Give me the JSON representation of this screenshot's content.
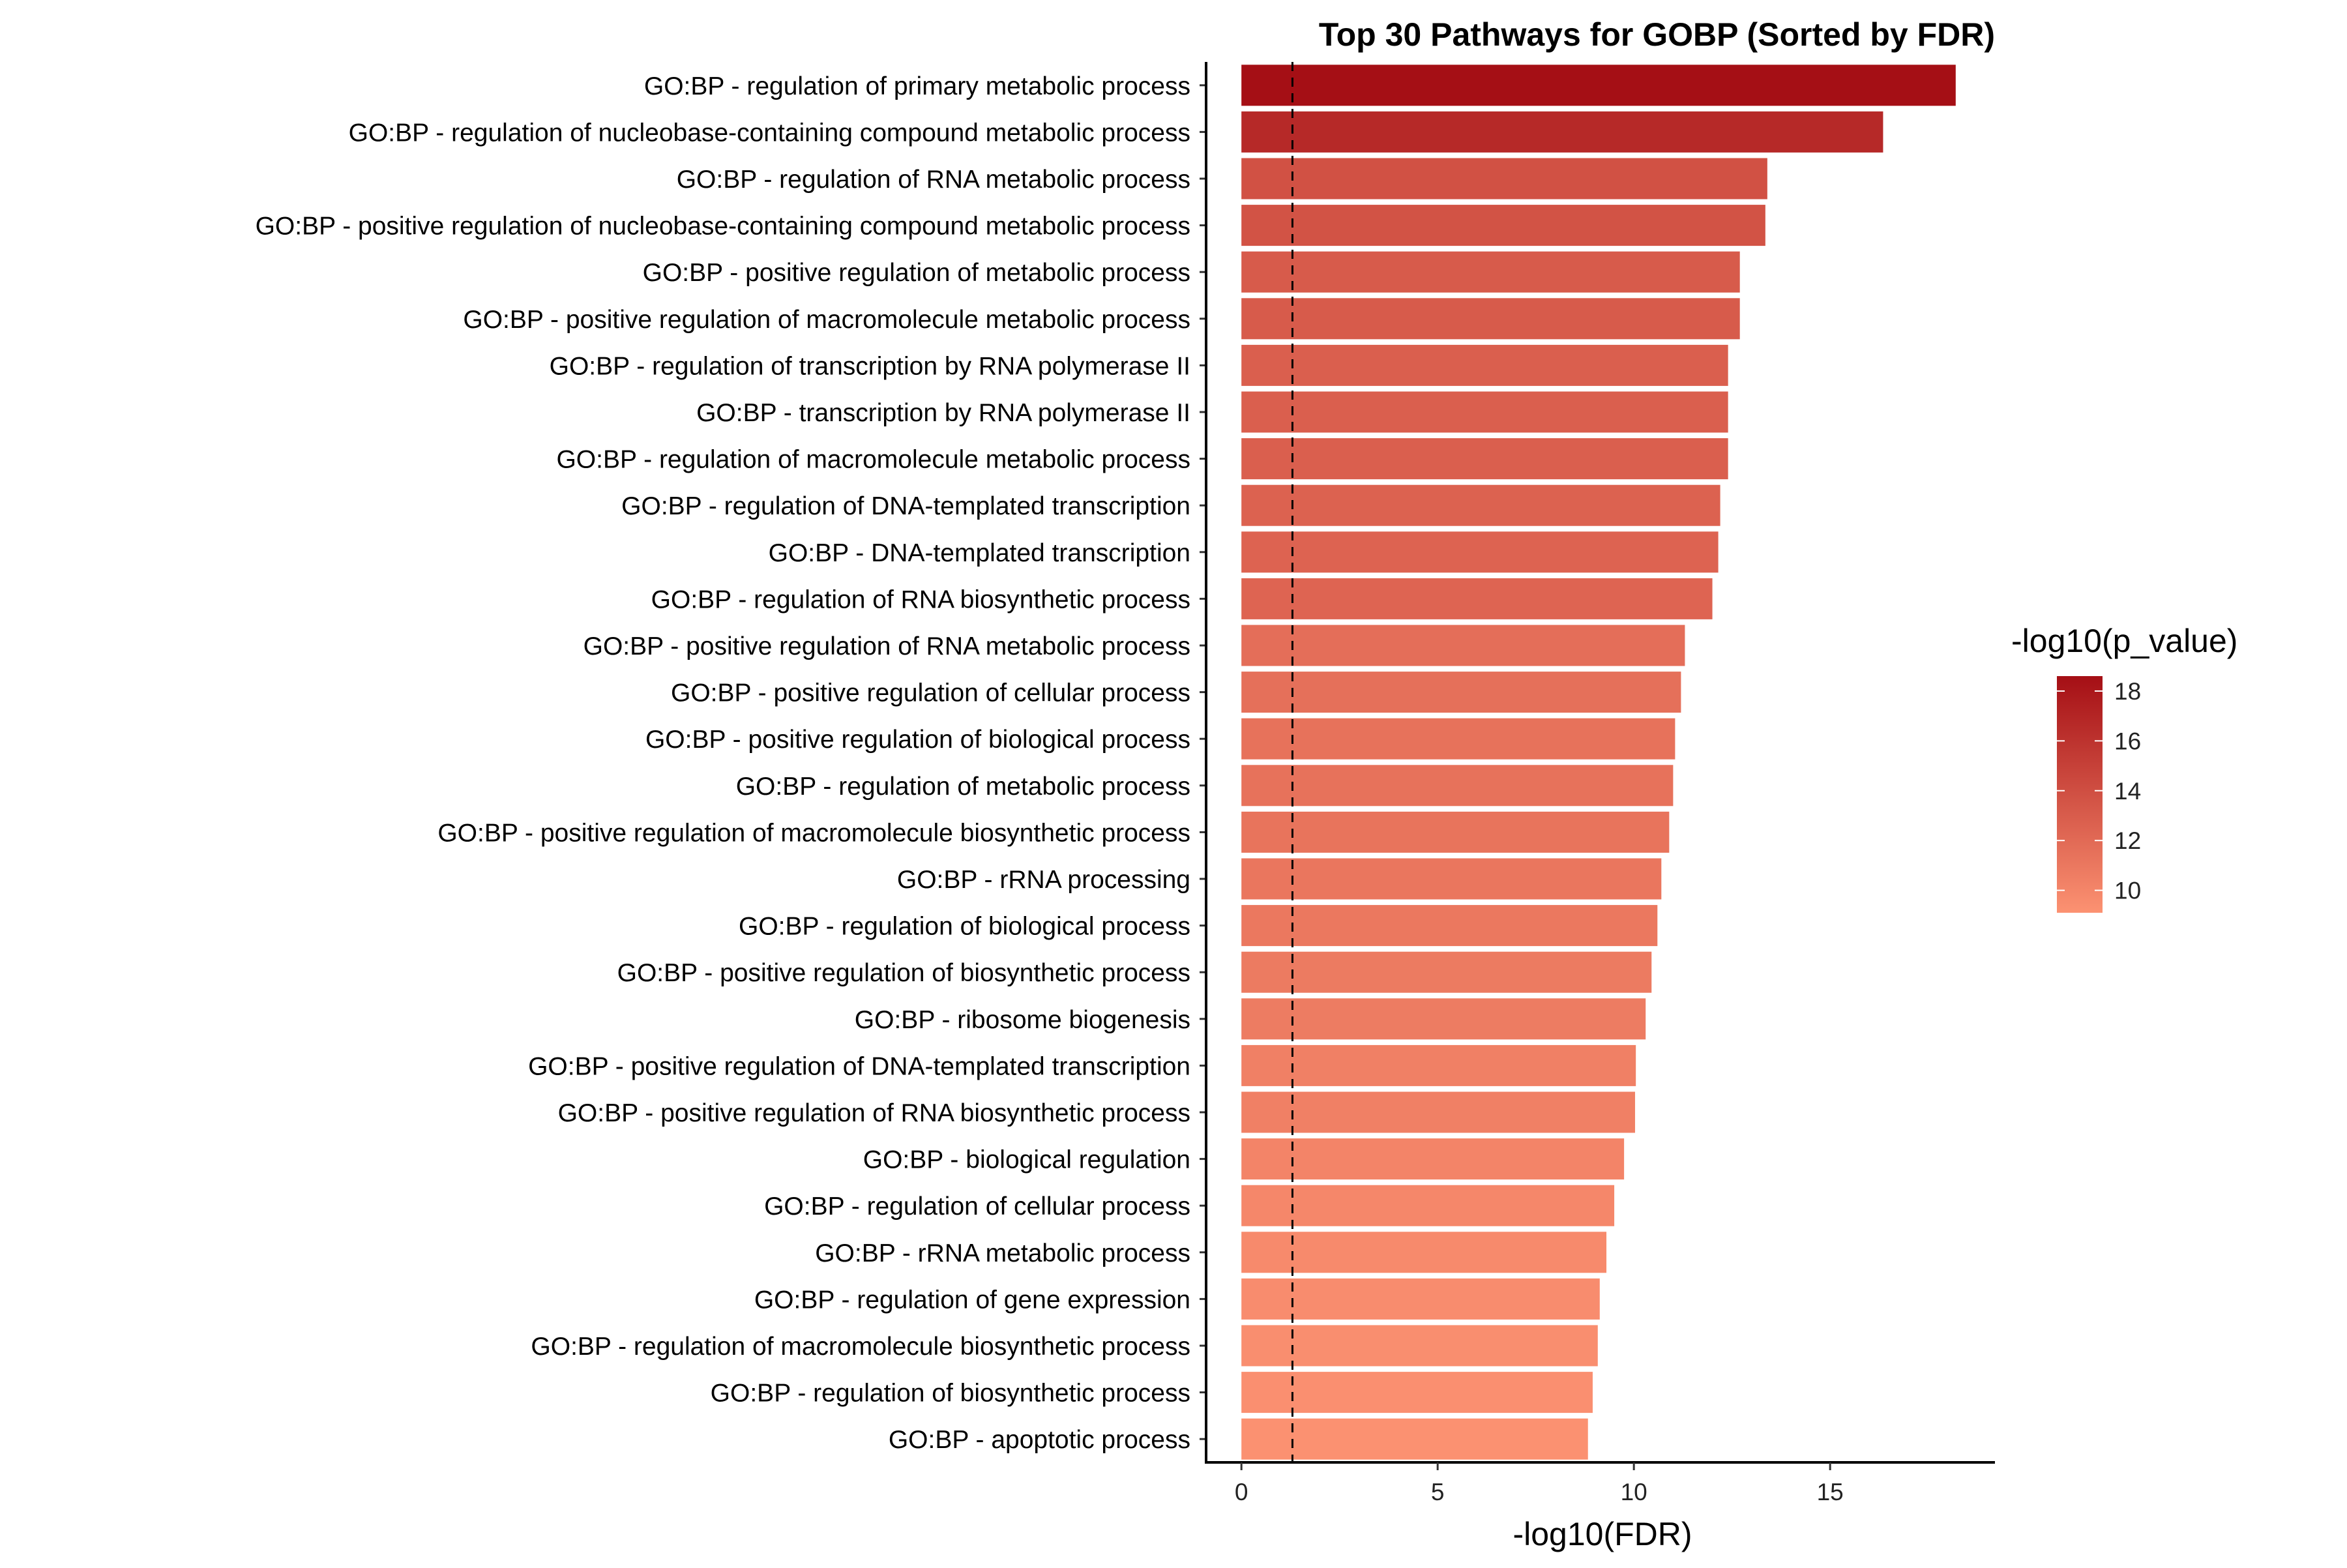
{
  "chart_data": {
    "type": "bar",
    "orientation": "horizontal",
    "title": "Top 30 Pathways for GOBP (Sorted by FDR)",
    "xlabel": "-log10(FDR)",
    "ylabel": "",
    "xlim": [
      -0.9,
      19.2
    ],
    "x_ticks": [
      0,
      5,
      10,
      15
    ],
    "threshold_line": 1.3,
    "grid": false,
    "legend": {
      "title": "-log10(p_value)",
      "position": "right",
      "type": "colorbar",
      "range": [
        9.1,
        18.6
      ],
      "ticks": [
        10,
        12,
        14,
        16,
        18
      ],
      "low_color": "#fc9272",
      "high_color": "#a50f15"
    },
    "categories": [
      "GO:BP - regulation of primary metabolic process",
      "GO:BP - regulation of nucleobase-containing compound metabolic process",
      "GO:BP - regulation of RNA metabolic process",
      "GO:BP - positive regulation of nucleobase-containing compound metabolic process",
      "GO:BP - positive regulation of metabolic process",
      "GO:BP - positive regulation of macromolecule metabolic process",
      "GO:BP - regulation of transcription by RNA polymerase II",
      "GO:BP - transcription by RNA polymerase II",
      "GO:BP - regulation of macromolecule metabolic process",
      "GO:BP - regulation of DNA-templated transcription",
      "GO:BP - DNA-templated transcription",
      "GO:BP - regulation of RNA biosynthetic process",
      "GO:BP - positive regulation of RNA metabolic process",
      "GO:BP - positive regulation of cellular process",
      "GO:BP - positive regulation of biological process",
      "GO:BP - regulation of metabolic process",
      "GO:BP - positive regulation of macromolecule biosynthetic process",
      "GO:BP - rRNA processing",
      "GO:BP - regulation of biological process",
      "GO:BP - positive regulation of biosynthetic process",
      "GO:BP - ribosome biogenesis",
      "GO:BP - positive regulation of DNA-templated transcription",
      "GO:BP - positive regulation of RNA biosynthetic process",
      "GO:BP - biological regulation",
      "GO:BP - regulation of cellular process",
      "GO:BP - rRNA metabolic process",
      "GO:BP - regulation of gene expression",
      "GO:BP - regulation of macromolecule biosynthetic process",
      "GO:BP - regulation of biosynthetic process",
      "GO:BP - apoptotic process"
    ],
    "values": [
      18.2,
      16.35,
      13.4,
      13.35,
      12.7,
      12.7,
      12.4,
      12.4,
      12.4,
      12.2,
      12.15,
      12.0,
      11.3,
      11.2,
      11.05,
      11.0,
      10.9,
      10.7,
      10.6,
      10.45,
      10.3,
      10.05,
      10.03,
      9.75,
      9.5,
      9.3,
      9.13,
      9.08,
      8.95,
      8.83
    ],
    "color_values": [
      18.6,
      16.7,
      13.8,
      13.7,
      13.1,
      13.1,
      12.8,
      12.8,
      12.8,
      12.6,
      12.5,
      12.4,
      11.7,
      11.6,
      11.4,
      11.4,
      11.3,
      11.1,
      11.0,
      10.8,
      10.7,
      10.4,
      10.4,
      10.1,
      9.9,
      9.7,
      9.5,
      9.4,
      9.3,
      9.2
    ]
  }
}
